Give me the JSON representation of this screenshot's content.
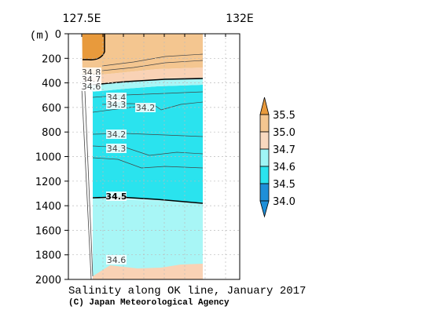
{
  "chart_data": {
    "type": "contour",
    "title": "Salinity along OK line, January 2017",
    "credit": "(C) Japan Meteorological Agency",
    "y_unit_label": "(m)",
    "x_tick_labels": [
      "127.5E",
      "132E"
    ],
    "ylim": [
      2000,
      0
    ],
    "y_ticks": [
      0,
      200,
      400,
      600,
      800,
      1000,
      1200,
      1400,
      1600,
      1800,
      2000
    ],
    "legend": {
      "levels": [
        "35.5",
        "35.0",
        "34.7",
        "34.6",
        "34.5",
        "34.0"
      ],
      "colors": [
        "#e89a3c",
        "#f4c690",
        "#f9d9bf",
        "#9ff5f5",
        "#2ae3ee",
        "#1e8fd8"
      ]
    },
    "contour_labels": [
      "34.8",
      "34.7",
      "34.6",
      "34.4",
      "34.3",
      "34.2",
      "34.2",
      "34.3",
      "34.5",
      "34.6"
    ],
    "layers": [
      {
        "range": "35.0-35.5",
        "color": "#e89a3c",
        "depth_m": [
          0,
          200
        ]
      },
      {
        "range": "34.7-35.0",
        "color": "#f4c690",
        "depth_m": [
          0,
          320
        ]
      },
      {
        "range": "34.6-34.7",
        "color": "#f9d9bf",
        "depth_m": [
          310,
          390
        ]
      },
      {
        "range": "34.5-34.6",
        "color": "#9ff5f5",
        "depth_m": [
          370,
          420
        ]
      },
      {
        "range": "34.0-34.5",
        "color": "#2ae3ee",
        "depth_m": [
          400,
          1380
        ]
      },
      {
        "range": "34.5-34.6",
        "color": "#9ff5f5",
        "depth_m": [
          1330,
          1900
        ]
      },
      {
        "range": "34.6-34.7",
        "color": "#f9d9bf",
        "depth_m": [
          1850,
          2000
        ]
      }
    ]
  }
}
